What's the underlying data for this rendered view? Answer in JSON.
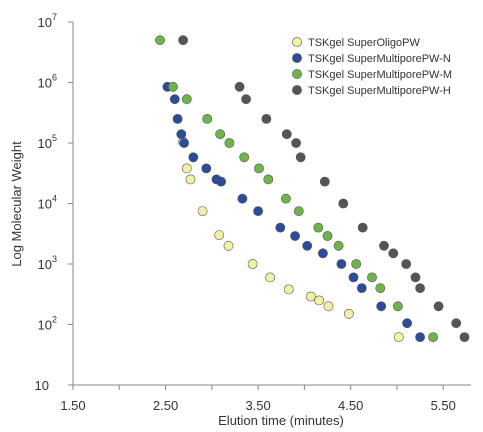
{
  "chart_data": {
    "type": "scatter",
    "xlabel": "Elution time (minutes)",
    "ylabel": "Log Molecular Weight",
    "xlim": [
      1.5,
      5.8
    ],
    "ylim_log10": [
      1,
      7
    ],
    "x_ticks": [
      "1.50",
      "2.50",
      "3.50",
      "4.50",
      "5.50"
    ],
    "y_ticks": [
      {
        "base": "10",
        "exp": ""
      },
      {
        "base": "10",
        "exp": "2"
      },
      {
        "base": "10",
        "exp": "3"
      },
      {
        "base": "10",
        "exp": "4"
      },
      {
        "base": "10",
        "exp": "5"
      },
      {
        "base": "10",
        "exp": "6"
      },
      {
        "base": "10",
        "exp": "7"
      }
    ],
    "legend_position": "top-right",
    "series": [
      {
        "name": "TSKgel SuperOligoPW",
        "color": "#f3f1a6",
        "points": [
          [
            2.69,
            105000
          ],
          [
            2.73,
            38000
          ],
          [
            2.77,
            25000
          ],
          [
            2.9,
            7500
          ],
          [
            3.08,
            3000
          ],
          [
            3.18,
            2000
          ],
          [
            3.44,
            1000
          ],
          [
            3.63,
            600
          ],
          [
            3.83,
            380
          ],
          [
            4.07,
            290
          ],
          [
            4.16,
            250
          ],
          [
            4.26,
            200
          ],
          [
            4.48,
            150
          ],
          [
            5.02,
            62
          ]
        ]
      },
      {
        "name": "TSKgel SuperMultiporePW-N",
        "color": "#2b4b9b",
        "points": [
          [
            2.52,
            850000
          ],
          [
            2.6,
            530000
          ],
          [
            2.63,
            250000
          ],
          [
            2.67,
            140000
          ],
          [
            2.7,
            100000
          ],
          [
            2.8,
            58000
          ],
          [
            2.94,
            38000
          ],
          [
            3.05,
            25000
          ],
          [
            3.1,
            23000
          ],
          [
            3.33,
            12000
          ],
          [
            3.5,
            7500
          ],
          [
            3.74,
            4000
          ],
          [
            3.9,
            2900
          ],
          [
            4.03,
            2000
          ],
          [
            4.2,
            1500
          ],
          [
            4.4,
            1000
          ],
          [
            4.53,
            600
          ],
          [
            4.62,
            400
          ],
          [
            4.83,
            200
          ],
          [
            5.11,
            105
          ],
          [
            5.25,
            62
          ]
        ]
      },
      {
        "name": "TSKgel SuperMultiporePW-M",
        "color": "#6db54a",
        "points": [
          [
            2.44,
            5000000
          ],
          [
            2.58,
            850000
          ],
          [
            2.73,
            530000
          ],
          [
            2.95,
            250000
          ],
          [
            3.09,
            140000
          ],
          [
            3.19,
            100000
          ],
          [
            3.35,
            58000
          ],
          [
            3.51,
            38000
          ],
          [
            3.61,
            25000
          ],
          [
            3.8,
            12000
          ],
          [
            3.94,
            7500
          ],
          [
            4.15,
            4000
          ],
          [
            4.25,
            2900
          ],
          [
            4.37,
            2000
          ],
          [
            4.56,
            1000
          ],
          [
            4.73,
            600
          ],
          [
            4.82,
            400
          ],
          [
            5.01,
            200
          ],
          [
            5.39,
            62
          ]
        ]
      },
      {
        "name": "TSKgel SuperMultiporePW-H",
        "color": "#555555",
        "points": [
          [
            2.69,
            5000000
          ],
          [
            3.3,
            850000
          ],
          [
            3.37,
            530000
          ],
          [
            3.59,
            250000
          ],
          [
            3.81,
            140000
          ],
          [
            3.91,
            100000
          ],
          [
            3.96,
            58000
          ],
          [
            4.22,
            23000
          ],
          [
            4.42,
            10000
          ],
          [
            4.63,
            4000
          ],
          [
            4.86,
            2000
          ],
          [
            4.96,
            1500
          ],
          [
            5.1,
            1000
          ],
          [
            5.2,
            600
          ],
          [
            5.25,
            400
          ],
          [
            5.45,
            200
          ],
          [
            5.64,
            105
          ],
          [
            5.73,
            62
          ]
        ]
      }
    ]
  }
}
